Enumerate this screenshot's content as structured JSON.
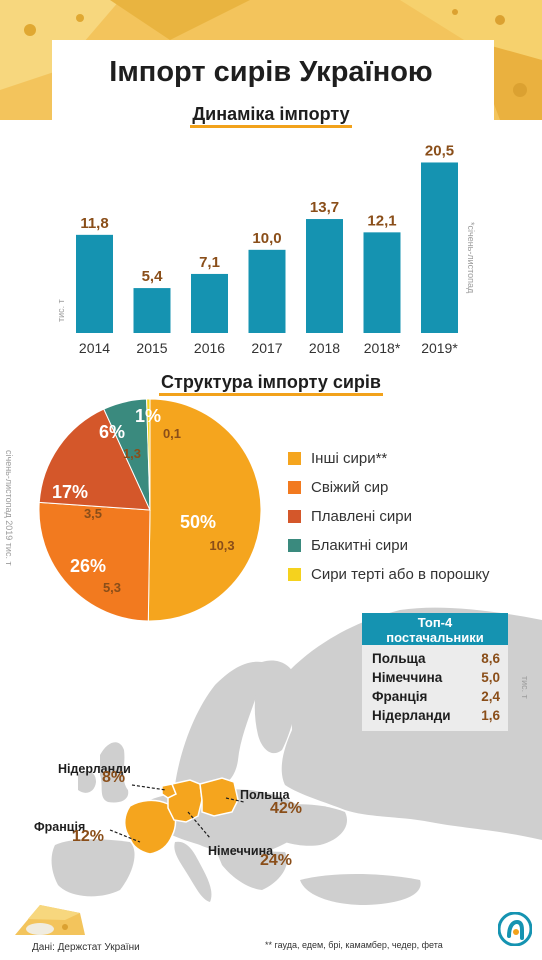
{
  "header": {
    "title": "Імпорт сирів Україною"
  },
  "bar_section": {
    "title": "Динаміка імпорту",
    "unit_note": "тис. т",
    "period_note": "*січень-листопад"
  },
  "pie_section": {
    "title": "Структура імпорту сирів",
    "side_note": "січень-листопад 2019    тис. т"
  },
  "top4": {
    "title_line1": "Топ-4",
    "title_line2": "постачальники",
    "unit_note": "тис. т",
    "rows": [
      {
        "name": "Польща",
        "value": "8,6"
      },
      {
        "name": "Німеччина",
        "value": "5,0"
      },
      {
        "name": "Франція",
        "value": "2,4"
      },
      {
        "name": "Нідерланди",
        "value": "1,6"
      }
    ]
  },
  "map": {
    "labels": [
      {
        "name": "Нідерланди",
        "pct": "8%"
      },
      {
        "name": "Франція",
        "pct": "12%"
      },
      {
        "name": "Польща",
        "pct": "42%"
      },
      {
        "name": "Німеччина",
        "pct": "24%"
      }
    ]
  },
  "footer": {
    "source": "Дані: Держстат України",
    "footnote": "** гауда, едем, брі, камамбер, чедер, фета"
  },
  "colors": {
    "bar": "#1593b1",
    "value_label": "#8a4e19",
    "accent": "#f2a21b",
    "map_base": "#cfcfcf",
    "map_highlight": "#f5a51e"
  },
  "chart_data": [
    {
      "type": "bar",
      "title": "Динаміка імпорту",
      "categories": [
        "2014",
        "2015",
        "2016",
        "2017",
        "2018",
        "2018*",
        "2019*"
      ],
      "values": [
        11.8,
        5.4,
        7.1,
        10.0,
        13.7,
        12.1,
        20.5
      ],
      "value_labels": [
        "11,8",
        "5,4",
        "7,1",
        "10,0",
        "13,7",
        "12,1",
        "20,5"
      ],
      "ylabel": "тис. т",
      "ylim": [
        0,
        22
      ],
      "grid": false,
      "legend": "none"
    },
    {
      "type": "pie",
      "title": "Структура імпорту сирів",
      "slices": [
        {
          "name": "Інші сири**",
          "pct": "50%",
          "value": 10.3,
          "value_label": "10,3",
          "color": "#f5a51e"
        },
        {
          "name": "Свіжий сир",
          "pct": "26%",
          "value": 5.3,
          "value_label": "5,3",
          "color": "#f27a1f"
        },
        {
          "name": "Плавлені сири",
          "pct": "17%",
          "value": 3.5,
          "value_label": "3,5",
          "color": "#d4572a"
        },
        {
          "name": "Блакитні сири",
          "pct": "6%",
          "value": 1.3,
          "value_label": "1,3",
          "color": "#3a8a7e"
        },
        {
          "name": "Сири терті або в порошку",
          "pct": "1%",
          "value": 0.1,
          "value_label": "0,1",
          "color": "#f5d21e"
        }
      ],
      "legend": "right"
    }
  ]
}
